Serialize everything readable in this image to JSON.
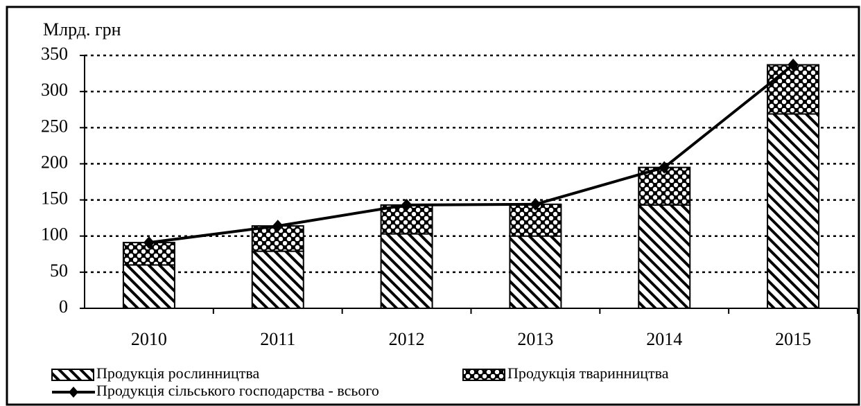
{
  "chart_data": {
    "type": "bar",
    "stacked": true,
    "y_label": "Млрд. грн",
    "categories": [
      "2010",
      "2011",
      "2012",
      "2013",
      "2014",
      "2015"
    ],
    "series": [
      {
        "name": "Продукція рослинництва",
        "type": "bar",
        "pattern": "diagonal",
        "values": [
          60,
          79,
          103,
          100,
          143,
          269
        ]
      },
      {
        "name": "Продукція тваринництва",
        "type": "bar",
        "pattern": "dots",
        "values": [
          31,
          35,
          40,
          44,
          52,
          68
        ]
      },
      {
        "name": "Продукція сільського господарства - всього",
        "type": "line",
        "color": "#000000",
        "values": [
          91,
          114,
          143,
          144,
          195,
          337
        ]
      }
    ],
    "ylim": [
      0,
      350
    ],
    "yticks": [
      0,
      50,
      100,
      150,
      200,
      250,
      300,
      350
    ],
    "grid": true
  }
}
